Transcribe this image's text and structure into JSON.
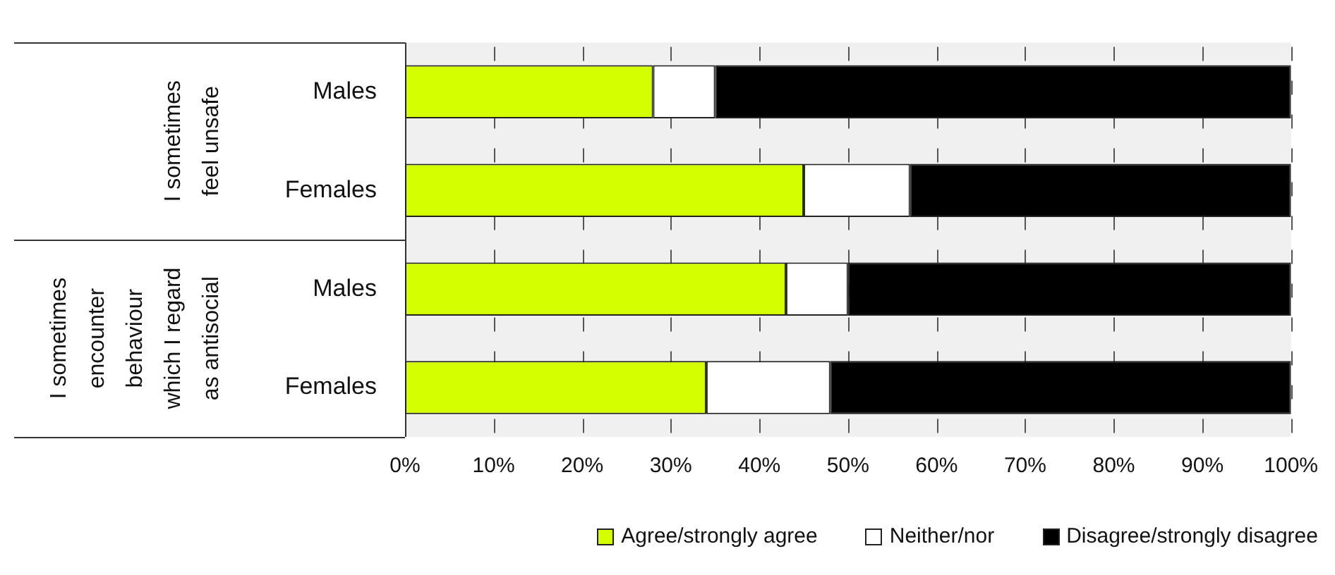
{
  "chart_data": {
    "type": "bar",
    "orientation": "horizontal",
    "stacked": true,
    "categories": [
      "Males",
      "Females",
      "Males",
      "Females"
    ],
    "series": [
      {
        "name": "Agree/strongly agree",
        "color": "#d4ff00",
        "values": [
          28,
          45,
          43,
          34
        ]
      },
      {
        "name": "Neither/nor",
        "color": "#ffffff",
        "values": [
          7,
          12,
          7,
          14
        ]
      },
      {
        "name": "Disagree/strongly disagree",
        "color": "#000000",
        "values": [
          65,
          43,
          50,
          52
        ]
      }
    ],
    "xlim": [
      0,
      100
    ],
    "xticks": [
      {
        "value": 0,
        "label": "0%"
      },
      {
        "value": 10,
        "label": "10%"
      },
      {
        "value": 20,
        "label": "20%"
      },
      {
        "value": 30,
        "label": "30%"
      },
      {
        "value": 40,
        "label": "40%"
      },
      {
        "value": 50,
        "label": "50%"
      },
      {
        "value": 60,
        "label": "60%"
      },
      {
        "value": 70,
        "label": "70%"
      },
      {
        "value": 80,
        "label": "80%"
      },
      {
        "value": 90,
        "label": "90%"
      },
      {
        "value": 100,
        "label": "100%"
      }
    ],
    "annotations": [
      "I sometimes feel unsafe",
      "I sometimes encounter behaviour which I regard as antisocial"
    ],
    "grid": "x",
    "legend": "bottom"
  }
}
